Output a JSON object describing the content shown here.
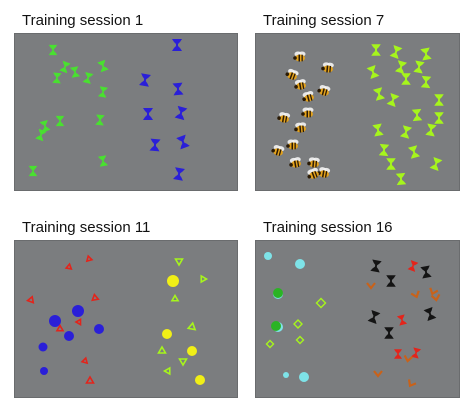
{
  "colors": {
    "panel_bg": "#7b7d7f",
    "green": "#49e030",
    "blue": "#2a1fd8",
    "lime": "#a6f51c",
    "red": "#e3241b",
    "yellow": "#f1ef16",
    "cyan": "#7ee3e8",
    "brown": "#c8621a",
    "black": "#141414",
    "bee_body": "#e3a21c",
    "bee_stripe": "#2a1a05"
  },
  "panels": [
    {
      "title": "Training session 1"
    },
    {
      "title": "Training session 7"
    },
    {
      "title": "Training session 11"
    },
    {
      "title": "Training session 16"
    }
  ]
}
